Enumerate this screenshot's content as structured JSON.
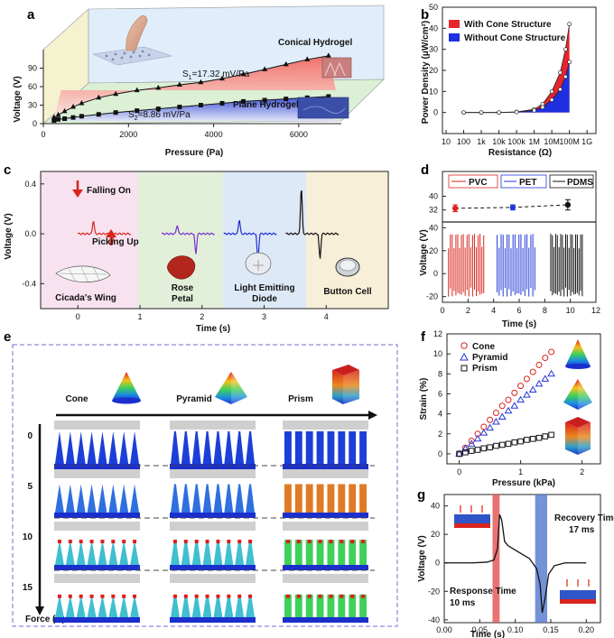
{
  "panels": [
    "a",
    "b",
    "c",
    "d",
    "e",
    "f",
    "g"
  ],
  "panel_a": {
    "conical_label": "Conical Hydrogel",
    "plane_label": "Plane Hydrogel",
    "s1": "S",
    "s1_sub": "1",
    "s1_val": "=17.32 mV/Pa",
    "s2": "S",
    "s2_sub": "2",
    "s2_val": "=8.86 mV/Pa"
  },
  "panel_c": {
    "falling_on": "Falling On",
    "picking_up": "Picking Up",
    "items": [
      "Cicada's Wing",
      "Rose",
      "Petal",
      "Light Emitting",
      "Diode",
      "Button Cell"
    ]
  },
  "panel_d": {
    "legend": [
      "PVC",
      "PET",
      "PDMS"
    ]
  },
  "panel_e": {
    "shapes": [
      "Cone",
      "Pyramid",
      "Prism"
    ],
    "force_levels": [
      "0",
      "5",
      "10",
      "15"
    ],
    "force_axis": "Force (N)"
  },
  "panel_g": {
    "response": "Response Time",
    "response_val": "10 ms",
    "recovery": "Recovery Time",
    "recovery_val": "17 ms"
  },
  "chart_data": [
    {
      "id": "a",
      "type": "line",
      "xlabel": "Pressure (Pa)",
      "ylabel": "Voltage (V)",
      "xlim": [
        0,
        7000
      ],
      "ylim": [
        0,
        120
      ],
      "xticks": [
        "0",
        "2000",
        "4000",
        "6000"
      ],
      "yticks": [
        "0",
        "30",
        "60",
        "90"
      ],
      "series": [
        {
          "name": "Conical Hydrogel",
          "x": [
            250,
            350,
            500,
            700,
            900,
            1300,
            1700,
            2200,
            2700,
            3200,
            3700,
            4200,
            4700,
            5200,
            5700,
            6200,
            6700
          ],
          "y": [
            10,
            14,
            20,
            27,
            33,
            42,
            48,
            54,
            58,
            63,
            67,
            73,
            80,
            88,
            96,
            104,
            110
          ]
        },
        {
          "name": "Plane Hydrogel",
          "x": [
            250,
            350,
            500,
            700,
            900,
            1300,
            1700,
            2200,
            2700,
            3200,
            3700,
            4200,
            4700,
            5200,
            5700,
            6200,
            6700
          ],
          "y": [
            5,
            7,
            8,
            10,
            12,
            15,
            18,
            21,
            24,
            27,
            30,
            33,
            36,
            38,
            40,
            42,
            44
          ]
        }
      ]
    },
    {
      "id": "b",
      "type": "area",
      "xlabel": "Resistance (Ω)",
      "ylabel": "Power Density (μW/cm²)",
      "xscale": "log",
      "ylim": [
        -10,
        50
      ],
      "xticks": [
        "10",
        "100",
        "1k",
        "10k",
        "100k",
        "1M",
        "10M",
        "100M",
        "1G"
      ],
      "yticks": [
        "0",
        "10",
        "20",
        "30",
        "40",
        "50"
      ],
      "legend": "top-left",
      "series": [
        {
          "name": "With Cone Structure",
          "x": [
            100,
            1000,
            10000,
            100000,
            1000000,
            3000000,
            10000000,
            30000000,
            60000000,
            100000000
          ],
          "y": [
            0,
            0,
            0,
            0.3,
            1.5,
            4,
            10,
            19,
            30,
            42
          ]
        },
        {
          "name": "Without Cone Structure",
          "x": [
            100,
            1000,
            10000,
            100000,
            1000000,
            3000000,
            10000000,
            30000000,
            60000000,
            100000000
          ],
          "y": [
            0,
            0,
            0,
            0.2,
            1,
            2.5,
            6,
            11,
            17,
            24
          ]
        }
      ]
    },
    {
      "id": "c",
      "type": "line",
      "xlabel": "Time (s)",
      "ylabel": "Voltage (V)",
      "xlim": [
        -0.6,
        5
      ],
      "ylim": [
        -0.6,
        0.5
      ],
      "xticks": [
        "0",
        "1",
        "2",
        "3",
        "4"
      ],
      "yticks": [
        "0.4",
        "0.0",
        "-0.4"
      ]
    },
    {
      "id": "d",
      "type": "line",
      "xlabel": "Time (s)",
      "ylabel": "Voltage (V)",
      "xlim": [
        0,
        12
      ],
      "xticks": [
        "0",
        "2",
        "4",
        "6",
        "8",
        "10",
        "12"
      ],
      "ylim_top": [
        25,
        45
      ],
      "yticks_top": [
        "32",
        "40"
      ],
      "ylim_bottom": [
        -25,
        45
      ],
      "yticks_bottom": [
        "-20",
        "0",
        "20",
        "40"
      ],
      "series": [
        {
          "name": "PVC",
          "x": [
            1.0
          ],
          "y": [
            33
          ],
          "err": [
            2
          ]
        },
        {
          "name": "PET",
          "x": [
            5.5
          ],
          "y": [
            33.5
          ],
          "err": [
            1.5
          ]
        },
        {
          "name": "PDMS",
          "x": [
            9.8
          ],
          "y": [
            35
          ],
          "err": [
            3
          ]
        }
      ]
    },
    {
      "id": "f",
      "type": "scatter",
      "xlabel": "Pressure (kPa)",
      "ylabel": "Strain (%)",
      "xlim": [
        -0.2,
        2.3
      ],
      "ylim": [
        -1,
        12
      ],
      "xticks": [
        "0",
        "1",
        "2"
      ],
      "yticks": [
        "0",
        "2",
        "4",
        "6",
        "8",
        "10",
        "12"
      ],
      "legend": "top-left",
      "series": [
        {
          "name": "Cone",
          "x": [
            0,
            0.1,
            0.2,
            0.3,
            0.4,
            0.5,
            0.6,
            0.7,
            0.8,
            0.9,
            1.0,
            1.1,
            1.2,
            1.3,
            1.4,
            1.5
          ],
          "y": [
            0,
            0.6,
            1.3,
            2.0,
            2.7,
            3.4,
            4.1,
            4.8,
            5.4,
            6.1,
            6.8,
            7.5,
            8.2,
            8.9,
            9.6,
            10.2
          ]
        },
        {
          "name": "Pyramid",
          "x": [
            0,
            0.1,
            0.2,
            0.3,
            0.4,
            0.5,
            0.6,
            0.7,
            0.8,
            0.9,
            1.0,
            1.1,
            1.2,
            1.3,
            1.4,
            1.5
          ],
          "y": [
            0,
            0.5,
            1.0,
            1.5,
            2.1,
            2.6,
            3.2,
            3.7,
            4.3,
            4.8,
            5.4,
            5.9,
            6.4,
            7.0,
            7.5,
            8.0
          ]
        },
        {
          "name": "Prism",
          "x": [
            0,
            0.1,
            0.2,
            0.3,
            0.4,
            0.5,
            0.6,
            0.7,
            0.8,
            0.9,
            1.0,
            1.1,
            1.2,
            1.3,
            1.4,
            1.5
          ],
          "y": [
            0,
            0.15,
            0.3,
            0.4,
            0.55,
            0.65,
            0.8,
            0.9,
            1.0,
            1.15,
            1.25,
            1.4,
            1.5,
            1.6,
            1.75,
            1.9
          ]
        }
      ]
    },
    {
      "id": "g",
      "type": "line",
      "xlabel": "Time (s)",
      "ylabel": "Voltage (V)",
      "xlim": [
        0,
        0.22
      ],
      "ylim": [
        -42,
        48
      ],
      "xticks": [
        "0.00",
        "0.05",
        "0.10",
        "0.15",
        "0.20"
      ],
      "yticks": [
        "40",
        "20",
        "0",
        "-20",
        "-40"
      ],
      "series": [
        {
          "name": "",
          "x": [
            0.0,
            0.04,
            0.06,
            0.07,
            0.075,
            0.078,
            0.081,
            0.085,
            0.09,
            0.1,
            0.11,
            0.12,
            0.13,
            0.135,
            0.138,
            0.142,
            0.147,
            0.155,
            0.17,
            0.2
          ],
          "y": [
            0,
            0,
            0.5,
            2,
            10,
            34,
            30,
            15,
            12,
            9,
            6,
            3,
            -4,
            -15,
            -35,
            -25,
            -8,
            -2,
            0,
            0
          ]
        }
      ]
    }
  ]
}
